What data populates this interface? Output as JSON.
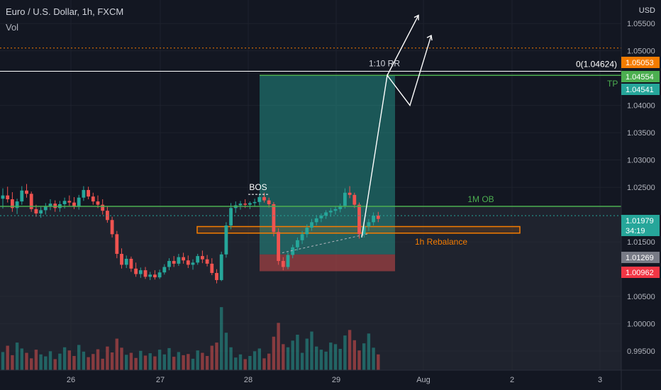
{
  "header": {
    "symbol": "Euro / U.S. Dollar, 1h, FXCM",
    "indicator": "Vol"
  },
  "axis": {
    "currency": "USD"
  },
  "chart_data": {
    "type": "candlestick",
    "title": "Euro / U.S. Dollar, 1h, FXCM",
    "ylabel": "USD",
    "ylim": [
      0.9915,
      1.0593
    ],
    "yticks": [
      "1.05500",
      "1.05000",
      "1.04000",
      "1.03500",
      "1.03000",
      "1.02500",
      "1.01500",
      "1.00500",
      "1.00000",
      "0.99500"
    ],
    "xticks": [
      "26",
      "27",
      "28",
      "29",
      "Aug",
      "2",
      "3"
    ],
    "price_tags": [
      {
        "label": "1.05053",
        "color": "#f57c00"
      },
      {
        "label": "1.04554",
        "color": "#4caf50"
      },
      {
        "label": "1.04541",
        "color": "#26a69a"
      },
      {
        "label": "1.01979",
        "color": "#26a69a"
      },
      {
        "label": "34:19",
        "color": "#26a69a"
      },
      {
        "label": "1.01269",
        "color": "#787b86"
      },
      {
        "label": "1.00962",
        "color": "#f23645"
      }
    ],
    "annotations": {
      "fib_label": "0(1.04624)",
      "tp": "TP",
      "rr": "1:10 RR",
      "bos": "BOS",
      "ob": "1M OB",
      "rebalance": "1h Rebalance"
    },
    "levels": {
      "ob": 1.0215,
      "tp": 1.0455,
      "fib0": 1.04624,
      "entry": 1.0127,
      "stop": 1.00962
    },
    "colors": {
      "up": "#26a69a",
      "down": "#ef5350",
      "ob": "#4caf50",
      "rebalance": "#f57c00"
    },
    "candles": [
      [
        1.0229,
        1.0248,
        1.0211,
        1.0235
      ],
      [
        1.0235,
        1.0251,
        1.0222,
        1.0228
      ],
      [
        1.0228,
        1.0241,
        1.0205,
        1.0212
      ],
      [
        1.0212,
        1.0229,
        1.0201,
        1.0224
      ],
      [
        1.0224,
        1.0252,
        1.0218,
        1.0244
      ],
      [
        1.0244,
        1.0256,
        1.0231,
        1.0238
      ],
      [
        1.0238,
        1.0242,
        1.0205,
        1.021
      ],
      [
        1.021,
        1.0218,
        1.0196,
        1.0202
      ],
      [
        1.0202,
        1.0214,
        1.0194,
        1.0208
      ],
      [
        1.0208,
        1.0221,
        1.02,
        1.0215
      ],
      [
        1.0215,
        1.0228,
        1.0208,
        1.022
      ],
      [
        1.022,
        1.0226,
        1.0205,
        1.0212
      ],
      [
        1.0212,
        1.0225,
        1.0205,
        1.0219
      ],
      [
        1.0219,
        1.0231,
        1.0211,
        1.0225
      ],
      [
        1.0225,
        1.0235,
        1.0216,
        1.0222
      ],
      [
        1.0222,
        1.0232,
        1.021,
        1.0214
      ],
      [
        1.0214,
        1.0236,
        1.0209,
        1.0231
      ],
      [
        1.0231,
        1.0252,
        1.0225,
        1.0245
      ],
      [
        1.0245,
        1.0251,
        1.0228,
        1.0233
      ],
      [
        1.0233,
        1.024,
        1.0218,
        1.0224
      ],
      [
        1.0224,
        1.0235,
        1.0212,
        1.0218
      ],
      [
        1.0218,
        1.0228,
        1.02,
        1.0207
      ],
      [
        1.0207,
        1.0215,
        1.0185,
        1.019
      ],
      [
        1.019,
        1.0196,
        1.0158,
        1.0164
      ],
      [
        1.0164,
        1.017,
        1.012,
        1.0128
      ],
      [
        1.0128,
        1.0138,
        1.0101,
        1.0108
      ],
      [
        1.0108,
        1.0125,
        1.0102,
        1.0119
      ],
      [
        1.0119,
        1.0123,
        1.0095,
        1.0101
      ],
      [
        1.0101,
        1.0112,
        1.0086,
        1.0091
      ],
      [
        1.0091,
        1.0103,
        1.0084,
        1.0098
      ],
      [
        1.0098,
        1.0104,
        1.0082,
        1.0086
      ],
      [
        1.0086,
        1.0095,
        1.008,
        1.009
      ],
      [
        1.009,
        1.0098,
        1.0081,
        1.0085
      ],
      [
        1.0085,
        1.0099,
        1.0082,
        1.0094
      ],
      [
        1.0094,
        1.0109,
        1.009,
        1.0104
      ],
      [
        1.0104,
        1.012,
        1.0098,
        1.0115
      ],
      [
        1.0115,
        1.0124,
        1.0104,
        1.011
      ],
      [
        1.011,
        1.0128,
        1.0106,
        1.0122
      ],
      [
        1.0122,
        1.013,
        1.011,
        1.0116
      ],
      [
        1.0116,
        1.0125,
        1.0102,
        1.0108
      ],
      [
        1.0108,
        1.0118,
        1.0099,
        1.0112
      ],
      [
        1.0112,
        1.0128,
        1.0108,
        1.0124
      ],
      [
        1.0124,
        1.0134,
        1.0111,
        1.0118
      ],
      [
        1.0118,
        1.0126,
        1.0105,
        1.011
      ],
      [
        1.011,
        1.012,
        1.0089,
        1.0093
      ],
      [
        1.0093,
        1.01,
        1.0074,
        1.008
      ],
      [
        1.008,
        1.0132,
        1.0078,
        1.0127
      ],
      [
        1.0127,
        1.0186,
        1.0121,
        1.018
      ],
      [
        1.018,
        1.0221,
        1.0173,
        1.0212
      ],
      [
        1.0212,
        1.0224,
        1.0203,
        1.0217
      ],
      [
        1.0217,
        1.0225,
        1.0209,
        1.022
      ],
      [
        1.022,
        1.0228,
        1.0212,
        1.0218
      ],
      [
        1.0218,
        1.0224,
        1.021,
        1.0221
      ],
      [
        1.0221,
        1.0229,
        1.0214,
        1.0223
      ],
      [
        1.0223,
        1.0238,
        1.0217,
        1.0232
      ],
      [
        1.0232,
        1.024,
        1.0222,
        1.0226
      ],
      [
        1.0226,
        1.0231,
        1.0213,
        1.0219
      ],
      [
        1.0219,
        1.0223,
        1.016,
        1.0168
      ],
      [
        1.0168,
        1.0175,
        1.0108,
        1.0115
      ],
      [
        1.0115,
        1.0122,
        1.0098,
        1.0104
      ],
      [
        1.0104,
        1.0131,
        1.01,
        1.0126
      ],
      [
        1.0126,
        1.0145,
        1.012,
        1.014
      ],
      [
        1.014,
        1.0158,
        1.0134,
        1.0153
      ],
      [
        1.0153,
        1.017,
        1.0146,
        1.0164
      ],
      [
        1.0164,
        1.0182,
        1.0158,
        1.0176
      ],
      [
        1.0176,
        1.0192,
        1.017,
        1.0186
      ],
      [
        1.0186,
        1.0199,
        1.018,
        1.0193
      ],
      [
        1.0193,
        1.0202,
        1.0186,
        1.0198
      ],
      [
        1.0198,
        1.0208,
        1.0192,
        1.0204
      ],
      [
        1.0204,
        1.0212,
        1.0196,
        1.0207
      ],
      [
        1.0207,
        1.0215,
        1.02,
        1.021
      ],
      [
        1.021,
        1.022,
        1.0204,
        1.0216
      ],
      [
        1.0216,
        1.0248,
        1.0211,
        1.024
      ],
      [
        1.024,
        1.0252,
        1.023,
        1.0236
      ],
      [
        1.0236,
        1.024,
        1.0212,
        1.0218
      ],
      [
        1.0218,
        1.0222,
        1.0156,
        1.0164
      ],
      [
        1.0164,
        1.0184,
        1.0158,
        1.0178
      ],
      [
        1.0178,
        1.0192,
        1.017,
        1.0186
      ],
      [
        1.0186,
        1.0204,
        1.018,
        1.0198
      ],
      [
        1.0198,
        1.0205,
        1.0186,
        1.0192
      ]
    ],
    "volume": [
      46,
      62,
      38,
      70,
      55,
      44,
      30,
      52,
      40,
      35,
      48,
      28,
      42,
      58,
      50,
      36,
      64,
      47,
      33,
      41,
      53,
      29,
      60,
      45,
      80,
      57,
      39,
      44,
      31,
      49,
      37,
      43,
      35,
      52,
      40,
      56,
      34,
      46,
      38,
      41,
      29,
      50,
      44,
      36,
      62,
      70,
      160,
      95,
      58,
      32,
      40,
      28,
      36,
      48,
      55,
      30,
      42,
      85,
      120,
      66,
      58,
      75,
      90,
      44,
      80,
      98,
      60,
      52,
      47,
      70,
      66,
      54,
      88,
      102,
      76,
      50,
      68,
      93,
      57,
      40
    ],
    "vol_max": 180
  }
}
